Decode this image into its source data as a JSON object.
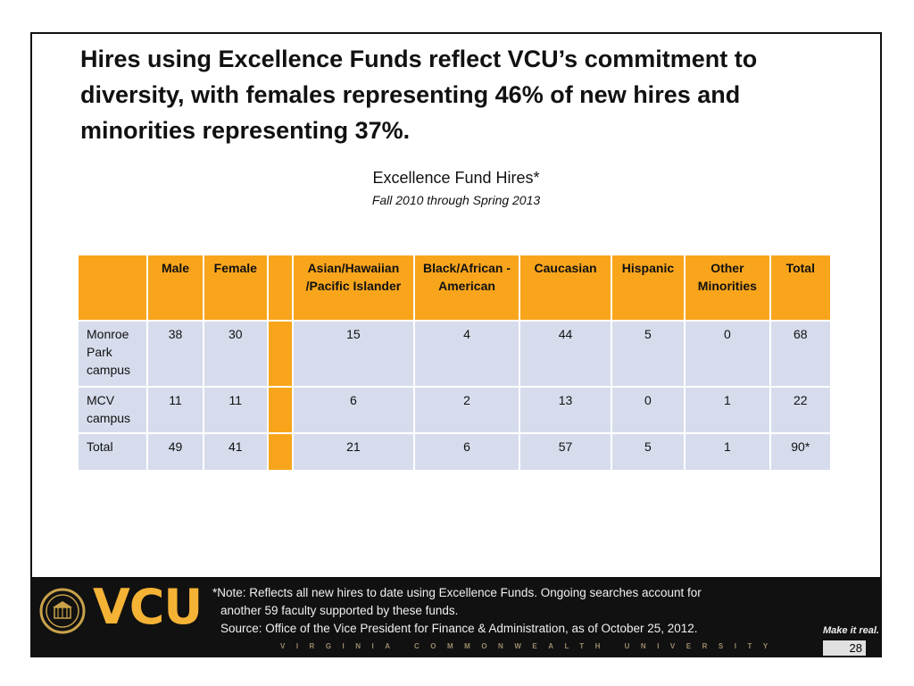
{
  "headline": "Hires using Excellence Funds reflect VCU’s commitment to diversity, with females representing 46% of new hires and minorities representing 37%.",
  "table_title": "Excellence Fund Hires*",
  "table_subtitle": "Fall 2010 through Spring 2013",
  "table": {
    "headers": [
      "",
      "Male",
      "Female",
      "",
      "Asian/Hawaiian /Pacific Islander",
      "Black/African -American",
      "Caucasian",
      "Hispanic",
      "Other Minorities",
      "Total"
    ],
    "rows": [
      {
        "label": "Monroe Park campus",
        "male": "38",
        "female": "30",
        "asian": "15",
        "black": "4",
        "caucasian": "44",
        "hispanic": "5",
        "other": "0",
        "total": "68"
      },
      {
        "label": "MCV campus",
        "male": "11",
        "female": "11",
        "asian": "6",
        "black": "2",
        "caucasian": "13",
        "hispanic": "0",
        "other": "1",
        "total": "22"
      },
      {
        "label": "Total",
        "male": "49",
        "female": "41",
        "asian": "21",
        "black": "6",
        "caucasian": "57",
        "hispanic": "5",
        "other": "1",
        "total": "90*"
      }
    ]
  },
  "footer": {
    "logo_text": "VCU",
    "note_line1": "*Note: Reflects all new hires to date using Excellence Funds. Ongoing searches account for",
    "note_line2": "another 59 faculty supported by these funds.",
    "note_line3": "Source: Office of the Vice President for Finance & Administration, as of October 25, 2012.",
    "university": "VIRGINIA COMMONWEALTH UNIVERSITY",
    "tagline": "Make it real.",
    "page_number": "28"
  },
  "colors": {
    "header_fill": "#f8a51c",
    "body_fill": "#d6dcec",
    "footer_bg": "#111111",
    "logo_gold": "#f5b335"
  }
}
